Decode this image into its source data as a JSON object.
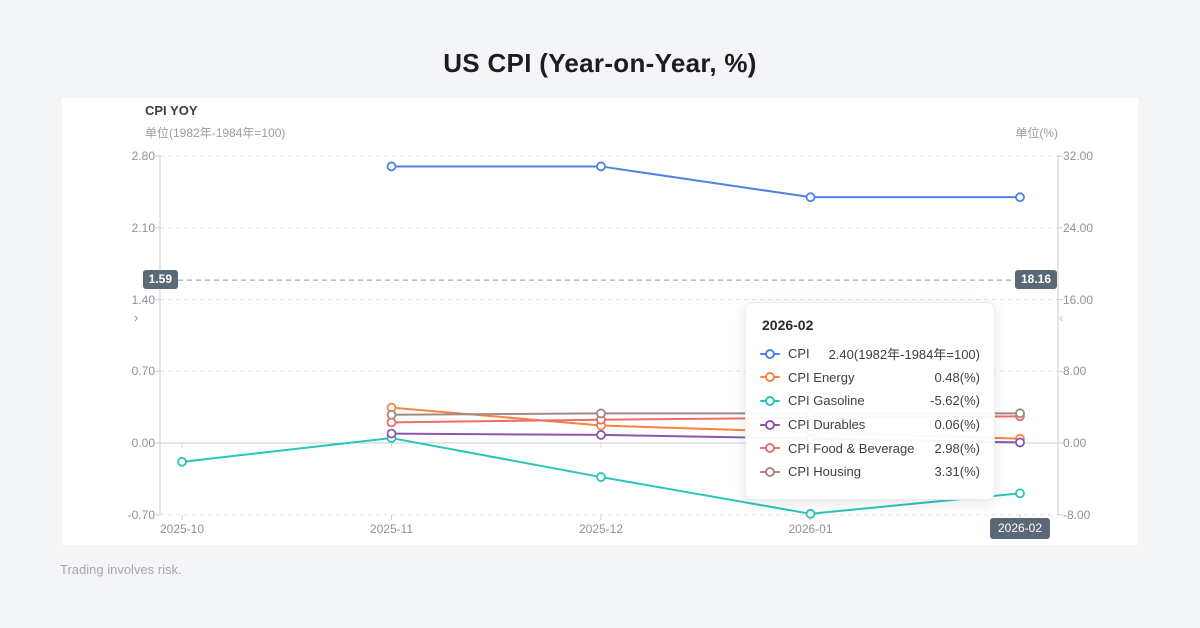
{
  "page": {
    "title": "US CPI (Year-on-Year, %)",
    "footer": "Trading involves risk."
  },
  "chart": {
    "title": "CPI YOY",
    "left_axis_unit": "单位(1982年-1984年=100)",
    "right_axis_unit": "单位(%)",
    "left_ticks": [
      "2.80",
      "2.10",
      "1.40",
      "0.70",
      "0.00",
      "-0.70"
    ],
    "right_ticks": [
      "32.00",
      "24.00",
      "16.00",
      "8.00",
      "0.00",
      "-8.00"
    ],
    "x_labels": [
      "2025-10",
      "2025-11",
      "2025-12",
      "2026-01",
      "2026-02"
    ],
    "highlighted_x": "2026-02",
    "crosshair": {
      "left_label": "1.59",
      "right_label": "18.16"
    },
    "nav": {
      "left_glyph": "›",
      "right_glyph": "‹"
    }
  },
  "tooltip": {
    "header": "2026-02",
    "rows": [
      {
        "name": "CPI",
        "value": "2.40(1982年-1984年=100)",
        "color": "#4e83e4"
      },
      {
        "name": "CPI Energy",
        "value": "0.48(%)",
        "color": "#f5853f"
      },
      {
        "name": "CPI Gasoline",
        "value": "-5.62(%)",
        "color": "#28c5bb"
      },
      {
        "name": "CPI Durables",
        "value": "0.06(%)",
        "color": "#8d56ae"
      },
      {
        "name": "CPI Food & Beverage",
        "value": "2.98(%)",
        "color": "#f06b6b"
      },
      {
        "name": "CPI Housing",
        "value": "3.31(%)",
        "color": "#a18a83"
      }
    ]
  },
  "chart_data": {
    "type": "line",
    "title": "CPI YOY",
    "categories": [
      "2025-10",
      "2025-11",
      "2025-12",
      "2026-01",
      "2026-02"
    ],
    "series": [
      {
        "name": "CPI",
        "axis": "left",
        "color": "#4e83e4",
        "values": [
          null,
          2.7,
          2.7,
          2.4,
          2.4
        ]
      },
      {
        "name": "CPI Energy",
        "axis": "right",
        "color": "#f5853f",
        "values": [
          null,
          3.95,
          1.95,
          1.2,
          0.48
        ]
      },
      {
        "name": "CPI Gasoline",
        "axis": "right",
        "color": "#28c5bb",
        "values": [
          -2.1,
          0.55,
          -3.8,
          -7.9,
          -5.62
        ]
      },
      {
        "name": "CPI Durables",
        "axis": "right",
        "color": "#8d56ae",
        "values": [
          null,
          1.05,
          0.9,
          0.5,
          0.06
        ]
      },
      {
        "name": "CPI Food & Beverage",
        "axis": "right",
        "color": "#f06b6b",
        "values": [
          null,
          2.3,
          2.6,
          2.8,
          2.98
        ]
      },
      {
        "name": "CPI Housing",
        "axis": "right",
        "color": "#a18a83",
        "values": [
          null,
          3.15,
          3.3,
          3.3,
          3.31
        ]
      }
    ],
    "left_axis": {
      "label": "单位(1982年-1984年=100)",
      "ticks": [
        2.8,
        2.1,
        1.4,
        0.7,
        0.0,
        -0.7
      ],
      "range": [
        -0.7,
        2.8
      ]
    },
    "right_axis": {
      "label": "单位(%)",
      "ticks": [
        32,
        24,
        16,
        8,
        0,
        -8
      ],
      "range": [
        -8,
        32
      ]
    },
    "crosshair": {
      "left_value": 1.59,
      "right_value": 18.16,
      "category": "2026-02"
    },
    "grid": "dashed-horizontal",
    "legend_position": "tooltip-only"
  }
}
